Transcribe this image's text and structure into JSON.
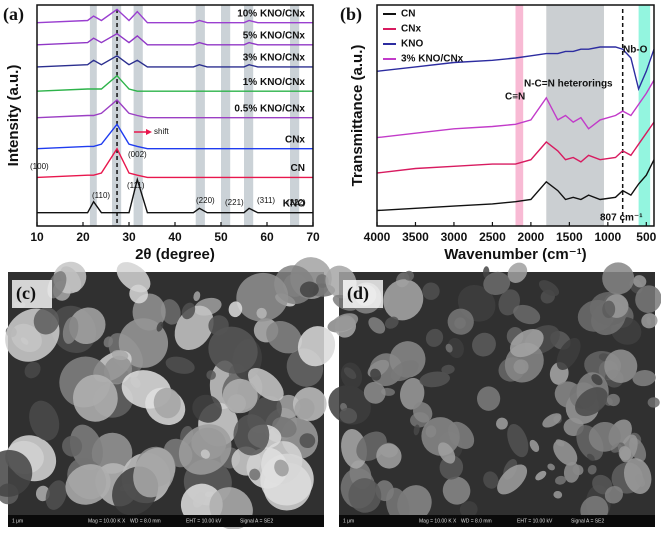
{
  "chart_data": [
    {
      "type": "line",
      "panel_label": "(a)",
      "x_label": "2θ (degree)",
      "y_label": "Intensity (a.u.)",
      "xlim": [
        10,
        70
      ],
      "xticks": [
        10,
        20,
        30,
        40,
        50,
        60,
        70
      ],
      "ylim": [
        0,
        100
      ],
      "x": [
        10,
        21,
        22.3,
        24,
        27.4,
        30,
        31.8,
        34,
        44,
        45.3,
        47,
        55,
        56.1,
        58,
        70
      ],
      "series": [
        {
          "name": "KNO",
          "color": "#111111",
          "values": [
            6,
            6,
            11,
            6,
            6,
            6,
            21,
            6,
            6,
            8,
            6,
            6,
            8,
            6,
            6
          ]
        },
        {
          "name": "CN",
          "color": "#e8174d",
          "values": [
            22,
            23,
            23,
            24,
            35,
            24,
            23,
            22,
            22,
            22,
            22,
            22,
            22,
            22,
            22
          ]
        },
        {
          "name": "CNx",
          "color": "#1f3cf0",
          "values": [
            35,
            36,
            36,
            37,
            46,
            37,
            36,
            35,
            35,
            35,
            35,
            35,
            35,
            35,
            35
          ]
        },
        {
          "name": "0.5% KNO/CNx",
          "color": "#9b3fc4",
          "values": [
            49,
            50,
            50,
            51,
            57,
            51,
            50,
            49,
            49,
            49,
            49,
            49,
            49,
            49,
            49
          ]
        },
        {
          "name": "1% KNO/CNx",
          "color": "#2db34a",
          "values": [
            61,
            62,
            62,
            62,
            68,
            62,
            61,
            61,
            61,
            61,
            61,
            61,
            61,
            61,
            61
          ]
        },
        {
          "name": "3% KNO/CNx",
          "color": "#2b2f8f",
          "values": [
            72,
            73,
            75,
            73,
            77,
            73,
            75,
            72,
            72,
            73,
            72,
            72,
            73,
            72,
            72
          ]
        },
        {
          "name": "5% KNO/CNx",
          "color": "#9037c6",
          "values": [
            82,
            83,
            85,
            83,
            87,
            83,
            86,
            82,
            82,
            83,
            82,
            82,
            83,
            82,
            82
          ]
        },
        {
          "name": "10% KNO/CNx",
          "color": "#9a3fd0",
          "values": [
            92,
            93,
            95,
            93,
            98,
            93,
            97,
            92,
            92,
            93,
            92,
            92,
            93,
            92,
            92
          ]
        }
      ],
      "highlight_bands": [
        {
          "range": [
            21.5,
            23
          ],
          "color": "#b9c3c9"
        },
        {
          "range": [
            26.3,
            28.3
          ],
          "color": "#b9c3c9"
        },
        {
          "range": [
            31,
            33
          ],
          "color": "#b9c3c9"
        },
        {
          "range": [
            44.5,
            46.5
          ],
          "color": "#b9c3c9"
        },
        {
          "range": [
            50,
            52
          ],
          "color": "#b9c3c9"
        },
        {
          "range": [
            55,
            57
          ],
          "color": "#b9c3c9"
        },
        {
          "range": [
            65,
            67
          ],
          "color": "#b9c3c9"
        }
      ],
      "reference_line_x": 27.4,
      "annotations": [
        "(100)",
        "(002)",
        "(110)",
        "(111)",
        "(220)",
        "(221)",
        "(311)",
        "(222)",
        "shift"
      ]
    },
    {
      "type": "line",
      "panel_label": "(b)",
      "x_label": "Wavenumber (cm⁻¹)",
      "y_label": "Transmittance (a.u.)",
      "xlim": [
        4000,
        400
      ],
      "xticks": [
        4000,
        3500,
        3000,
        2500,
        2000,
        1500,
        1000,
        500
      ],
      "ylim": [
        0,
        100
      ],
      "x": [
        4000,
        3500,
        3000,
        2500,
        2200,
        2000,
        1800,
        1650,
        1550,
        1450,
        1350,
        1250,
        1100,
        900,
        807,
        700,
        600,
        500,
        400
      ],
      "series": [
        {
          "name": "CN",
          "color": "#111111",
          "values": [
            7,
            8,
            9,
            10,
            11,
            12,
            20,
            16,
            12,
            13,
            12,
            14,
            12,
            13,
            16,
            14,
            19,
            23,
            30
          ]
        },
        {
          "name": "CNx",
          "color": "#d81b60",
          "values": [
            24,
            26,
            27,
            28,
            28,
            30,
            38,
            34,
            30,
            31,
            29,
            32,
            30,
            31,
            34,
            32,
            37,
            42,
            47
          ]
        },
        {
          "name": "KNO",
          "color": "#2c2ca0",
          "values": [
            70,
            72,
            74,
            75,
            76,
            77,
            78,
            78,
            79,
            79,
            80,
            80,
            81,
            81,
            80,
            76,
            62,
            70,
            80
          ]
        },
        {
          "name": "3% KNO/CNx",
          "color": "#c23bc9",
          "values": [
            40,
            42,
            44,
            45,
            46,
            48,
            58,
            48,
            50,
            47,
            49,
            44,
            48,
            50,
            52,
            50,
            55,
            60,
            66
          ]
        }
      ],
      "highlight_bands": [
        {
          "range": [
            2200,
            2100
          ],
          "color": "#f6a3c6"
        },
        {
          "range": [
            1800,
            1050
          ],
          "color": "#b9bfc3"
        },
        {
          "range": [
            600,
            450
          ],
          "color": "#6ff2d4"
        }
      ],
      "reference_line_x": 807,
      "annotations": [
        "C≡N",
        "N-C=N heterorings",
        "Nb-O",
        "807 cm⁻¹"
      ]
    }
  ],
  "images": [
    {
      "label": "(c)",
      "footer": [
        "1 μm",
        "Mag = 10.00 K X",
        "WD = 8.0 mm",
        "EHT = 10.00 kV",
        "Signal A = SE2"
      ]
    },
    {
      "label": "(d)",
      "footer": [
        "1 μm",
        "Mag = 10.00 K X",
        "WD = 8.0 mm",
        "EHT = 10.00 kV",
        "Signal A = SE2"
      ]
    }
  ]
}
